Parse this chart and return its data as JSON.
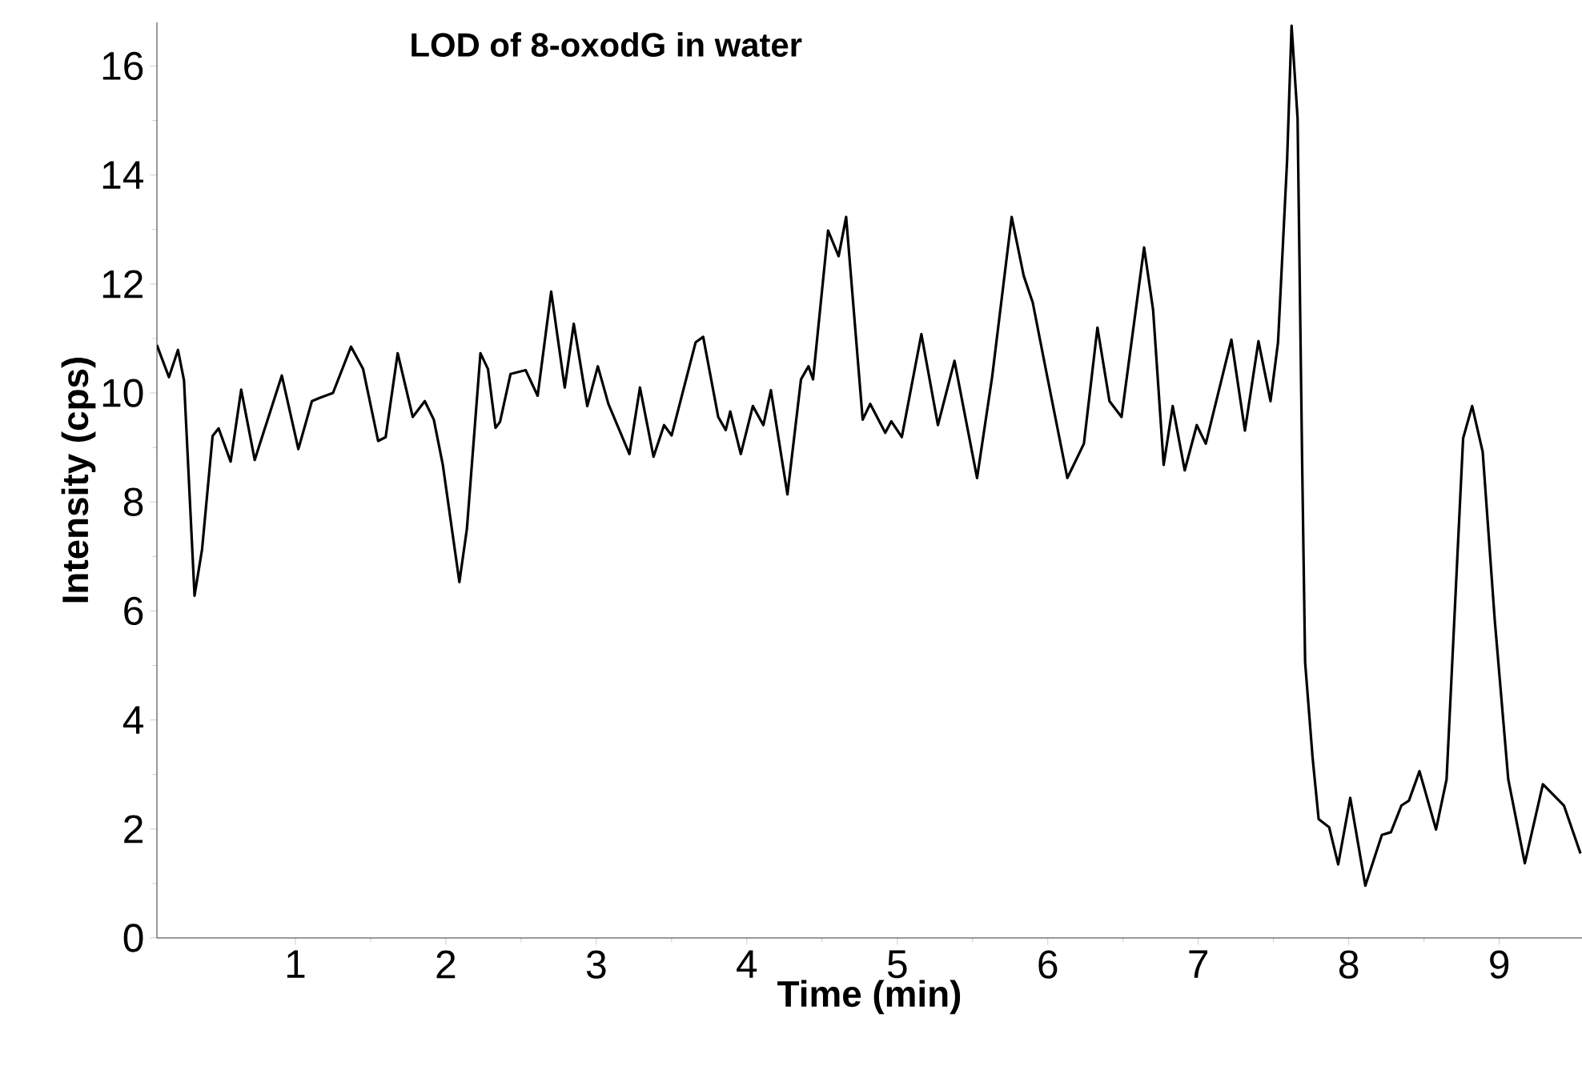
{
  "chart_data": {
    "type": "line",
    "title": "LOD of 8-oxodG in water",
    "xlabel": "Time (min)",
    "ylabel": "Intensity (cps)",
    "xlim": [
      0.08,
      9.55
    ],
    "ylim": [
      0,
      16.8
    ],
    "xticks": [
      1,
      2,
      3,
      4,
      5,
      6,
      7,
      8,
      9
    ],
    "yticks": [
      0,
      2,
      4,
      6,
      8,
      10,
      12,
      14,
      16
    ],
    "grid": false,
    "marker": "none",
    "line_style": "solid",
    "series": [
      {
        "color": "#000000",
        "x": [
          0.08,
          0.1,
          0.16,
          0.22,
          0.26,
          0.33,
          0.38,
          0.45,
          0.49,
          0.57,
          0.64,
          0.73,
          0.76,
          0.91,
          1.02,
          1.11,
          1.16,
          1.25,
          1.37,
          1.45,
          1.55,
          1.6,
          1.68,
          1.78,
          1.86,
          1.92,
          1.98,
          2.09,
          2.14,
          2.23,
          2.28,
          2.33,
          2.36,
          2.43,
          2.53,
          2.61,
          2.7,
          2.79,
          2.85,
          2.94,
          3.01,
          3.08,
          3.22,
          3.29,
          3.38,
          3.45,
          3.5,
          3.66,
          3.71,
          3.81,
          3.86,
          3.89,
          3.96,
          4.04,
          4.11,
          4.16,
          4.27,
          4.36,
          4.41,
          4.44,
          4.54,
          4.61,
          4.66,
          4.77,
          4.82,
          4.92,
          4.96,
          5.03,
          5.16,
          5.27,
          5.38,
          5.53,
          5.63,
          5.76,
          5.84,
          5.9,
          5.99,
          6.13,
          6.24,
          6.33,
          6.41,
          6.49,
          6.64,
          6.7,
          6.77,
          6.83,
          6.91,
          6.99,
          7.05,
          7.22,
          7.31,
          7.4,
          7.48,
          7.53,
          7.59,
          7.62,
          7.66,
          7.69,
          7.71,
          7.76,
          7.8,
          7.87,
          7.93,
          8.01,
          8.11,
          8.22,
          8.28,
          8.35,
          8.4,
          8.47,
          8.58,
          8.65,
          8.76,
          8.82,
          8.89,
          8.97,
          9.06,
          9.17,
          9.29,
          9.43,
          9.54
        ],
        "values": [
          10.88,
          10.73,
          10.29,
          10.79,
          10.23,
          6.28,
          7.13,
          9.21,
          9.35,
          8.74,
          10.06,
          8.77,
          9.03,
          10.32,
          8.97,
          9.85,
          9.91,
          10.0,
          10.85,
          10.44,
          9.12,
          9.19,
          10.73,
          9.56,
          9.85,
          9.51,
          8.68,
          6.53,
          7.51,
          10.73,
          10.44,
          9.36,
          9.47,
          10.35,
          10.42,
          9.95,
          11.86,
          10.1,
          11.27,
          9.76,
          10.49,
          9.8,
          8.88,
          10.1,
          8.83,
          9.41,
          9.22,
          10.93,
          11.03,
          9.56,
          9.32,
          9.66,
          8.88,
          9.76,
          9.41,
          10.05,
          8.14,
          10.25,
          10.49,
          10.25,
          12.98,
          12.51,
          13.23,
          9.51,
          9.8,
          9.27,
          9.48,
          9.19,
          11.08,
          9.41,
          10.59,
          8.44,
          10.29,
          13.23,
          12.15,
          11.66,
          10.39,
          8.44,
          9.07,
          11.2,
          9.85,
          9.56,
          12.67,
          11.52,
          8.68,
          9.76,
          8.58,
          9.41,
          9.07,
          10.98,
          9.31,
          10.95,
          9.85,
          10.93,
          14.25,
          16.74,
          15.04,
          8.78,
          5.06,
          3.3,
          2.18,
          2.03,
          1.35,
          2.57,
          0.96,
          1.89,
          1.94,
          2.43,
          2.52,
          3.06,
          1.99,
          2.91,
          9.17,
          9.76,
          8.92,
          5.84,
          2.91,
          1.37,
          2.82,
          2.43,
          1.55
        ]
      }
    ]
  }
}
